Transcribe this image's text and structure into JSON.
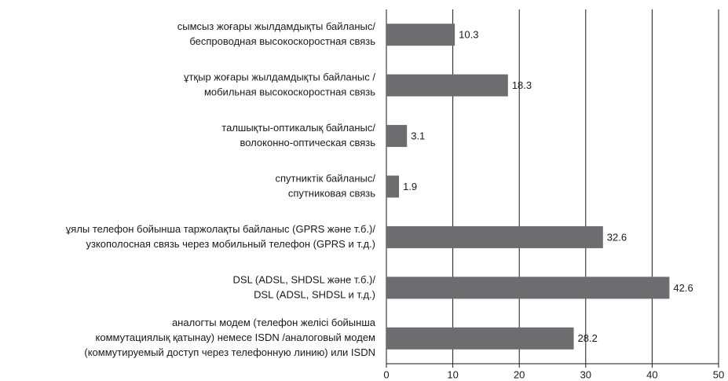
{
  "chart_data": {
    "type": "bar",
    "orientation": "horizontal",
    "categories": [
      [
        "сымсыз жоғары жылдамдықты байланыс/",
        "беспроводная высокоскоростная связь"
      ],
      [
        "ұтқыр жоғары жылдамдықты байланыс /",
        "мобильная высокоскоростная связь"
      ],
      [
        "талшықты-оптикалық байланыс/",
        "волоконно-оптическая связь"
      ],
      [
        "спутниктік байланыс/",
        "спутниковая связь"
      ],
      [
        "ұялы телефон бойынша таржолақты  байланыс (GPRS және т.б.)/",
        "узкополосная связь через мобильный телефон (GPRS и т.д.)"
      ],
      [
        "DSL (ADSL, SHDSL және т.б.)/",
        "DSL (ADSL, SHDSL и т.д.)"
      ],
      [
        "аналогты модем (телефон желісі бойынша",
        "коммутациялық қатынау) немесе ISDN /аналоговый модем",
        "(коммутируемый доступ через телефонную линию) или ISDN"
      ]
    ],
    "values": [
      10.3,
      18.3,
      3.1,
      1.9,
      32.6,
      42.6,
      28.2
    ],
    "color": "#6d6d6f",
    "xlim": [
      0,
      50
    ],
    "xticks": [
      0,
      10,
      20,
      30,
      40,
      50
    ],
    "grid": true
  }
}
